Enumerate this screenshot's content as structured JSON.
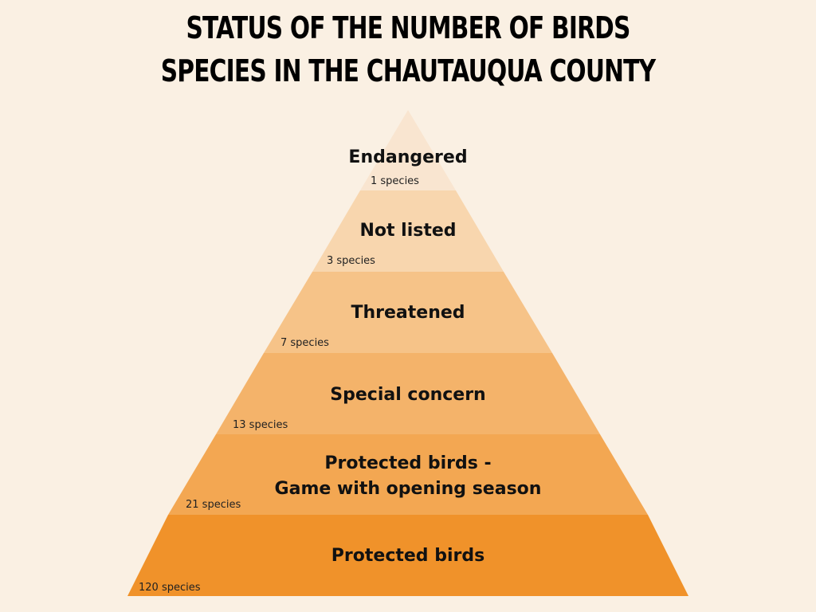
{
  "title": {
    "line1": "STATUS OF THE NUMBER OF BIRDS",
    "line2": "SPECIES IN THE CHAUTAUQUA COUNTY"
  },
  "levels": [
    {
      "label": "Endangered",
      "count": "1 species",
      "color": "#F9E5D0"
    },
    {
      "label": "Not listed",
      "count": "3 species",
      "color": "#F8D6AE"
    },
    {
      "label": "Threatened",
      "count": "7 species",
      "color": "#F6C388"
    },
    {
      "label": "Special concern",
      "count": "13 species",
      "color": "#F4B36A"
    },
    {
      "label_line1": "Protected birds -",
      "label_line2": "Game with opening season",
      "count": "21 species",
      "color": "#F3A752"
    },
    {
      "label": "Protected birds",
      "count": "120 species",
      "color": "#F0922A"
    }
  ]
}
